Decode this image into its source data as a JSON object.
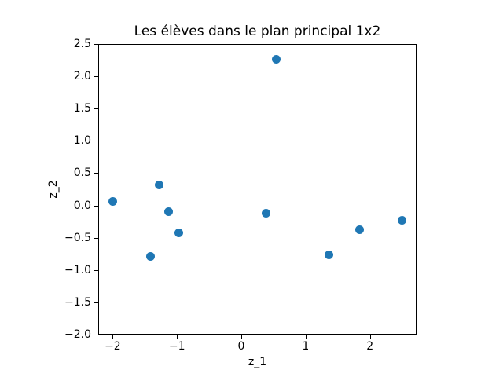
{
  "chart_data": {
    "type": "scatter",
    "title": "Les élèves dans le plan principal 1x2",
    "xlabel": "z_1",
    "ylabel": "z_2",
    "xlim": [
      -2.225,
      2.725
    ],
    "ylim": [
      -2.0,
      2.5
    ],
    "grid": false,
    "legend": "none",
    "xtick_values": [
      -2,
      -1,
      0,
      1,
      2
    ],
    "xtick_labels": [
      "−2",
      "−1",
      "0",
      "1",
      "2"
    ],
    "ytick_values": [
      -2.0,
      -1.5,
      -1.0,
      -0.5,
      0.0,
      0.5,
      1.0,
      1.5,
      2.0,
      2.5
    ],
    "ytick_labels": [
      "−2.0",
      "−1.5",
      "−1.0",
      "−0.5",
      "0.0",
      "0.5",
      "1.0",
      "1.5",
      "2.0",
      "2.5"
    ],
    "series": [
      {
        "name": "eleves",
        "marker": "circle",
        "color": "#1f77b4",
        "points": [
          [
            -2.0,
            0.06
          ],
          [
            -1.28,
            0.32
          ],
          [
            -1.13,
            -0.09
          ],
          [
            -0.97,
            -0.42
          ],
          [
            -1.41,
            -0.79
          ],
          [
            0.54,
            2.26
          ],
          [
            0.38,
            -0.12
          ],
          [
            1.36,
            -0.76
          ],
          [
            1.84,
            -0.38
          ],
          [
            2.5,
            -0.23
          ]
        ]
      }
    ],
    "colors": {
      "marker": "#1f77b4",
      "spine": "#000000",
      "background": "#ffffff",
      "text": "#000000"
    }
  }
}
